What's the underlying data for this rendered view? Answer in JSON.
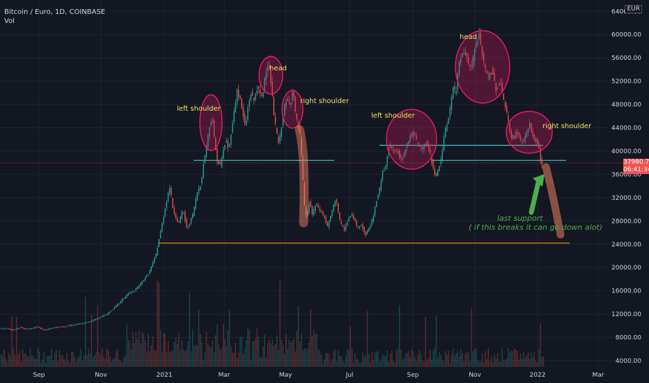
{
  "header": {
    "title": "Bitcoin / Euro, 1D, COINBASE",
    "indicator": "Vol",
    "currency": "EUR"
  },
  "last_price": {
    "value": "37980.73",
    "countdown": "06:41:34",
    "color": "#ef5350"
  },
  "chart_data": {
    "type": "candlestick",
    "y_ticks": [
      "4000.00",
      "8000.00",
      "12000.00",
      "16000.00",
      "20000.00",
      "24000.00",
      "28000.00",
      "32000.00",
      "36000.00",
      "40000.00",
      "44000.00",
      "48000.00",
      "52000.00",
      "56000.00",
      "60000.00",
      "64000.00"
    ],
    "x_ticks": [
      "Sep",
      "Nov",
      "2021",
      "Mar",
      "May",
      "Jul",
      "Sep",
      "Nov",
      "2022",
      "Mar"
    ],
    "price_path": [
      [
        0,
        9500
      ],
      [
        8,
        9600
      ],
      [
        20,
        9300
      ],
      [
        30,
        9700
      ],
      [
        40,
        9400
      ],
      [
        55,
        9800
      ],
      [
        65,
        9300
      ],
      [
        80,
        9700
      ],
      [
        95,
        9900
      ],
      [
        110,
        10200
      ],
      [
        125,
        10500
      ],
      [
        140,
        11200
      ],
      [
        155,
        12000
      ],
      [
        165,
        13000
      ],
      [
        175,
        14200
      ],
      [
        185,
        15500
      ],
      [
        195,
        16000
      ],
      [
        205,
        17500
      ],
      [
        215,
        19000
      ],
      [
        225,
        22000
      ],
      [
        235,
        28000
      ],
      [
        245,
        34000
      ],
      [
        250,
        30000
      ],
      [
        258,
        27500
      ],
      [
        264,
        30000
      ],
      [
        270,
        26500
      ],
      [
        278,
        29000
      ],
      [
        285,
        33000
      ],
      [
        290,
        34500
      ],
      [
        294,
        38000
      ],
      [
        298,
        41000
      ],
      [
        302,
        44000
      ],
      [
        306,
        46000
      ],
      [
        310,
        41000
      ],
      [
        314,
        38000
      ],
      [
        318,
        37500
      ],
      [
        322,
        40000
      ],
      [
        326,
        42000
      ],
      [
        330,
        40000
      ],
      [
        334,
        44000
      ],
      [
        338,
        47000
      ],
      [
        342,
        50500
      ],
      [
        346,
        49000
      ],
      [
        350,
        46500
      ],
      [
        354,
        44000
      ],
      [
        358,
        48000
      ],
      [
        362,
        50000
      ],
      [
        366,
        48500
      ],
      [
        370,
        51000
      ],
      [
        374,
        50000
      ],
      [
        378,
        49000
      ],
      [
        382,
        53000
      ],
      [
        386,
        55000
      ],
      [
        390,
        52500
      ],
      [
        394,
        47000
      ],
      [
        398,
        43500
      ],
      [
        402,
        41000
      ],
      [
        406,
        44500
      ],
      [
        410,
        47500
      ],
      [
        414,
        49000
      ],
      [
        418,
        48000
      ],
      [
        422,
        51000
      ],
      [
        426,
        46000
      ],
      [
        430,
        44000
      ],
      [
        433,
        42000
      ],
      [
        436,
        36000
      ],
      [
        439,
        30000
      ],
      [
        442,
        28500
      ],
      [
        446,
        31500
      ],
      [
        450,
        29000
      ],
      [
        455,
        31000
      ],
      [
        460,
        30000
      ],
      [
        466,
        29000
      ],
      [
        472,
        27000
      ],
      [
        478,
        29500
      ],
      [
        484,
        32000
      ],
      [
        490,
        27500
      ],
      [
        496,
        26500
      ],
      [
        502,
        28500
      ],
      [
        508,
        29000
      ],
      [
        514,
        27000
      ],
      [
        520,
        27500
      ],
      [
        526,
        25500
      ],
      [
        530,
        26500
      ],
      [
        534,
        27500
      ],
      [
        538,
        29000
      ],
      [
        542,
        31500
      ],
      [
        546,
        33000
      ],
      [
        550,
        36000
      ],
      [
        555,
        37500
      ],
      [
        560,
        41000
      ],
      [
        566,
        40000
      ],
      [
        572,
        40000
      ],
      [
        578,
        38500
      ],
      [
        584,
        40500
      ],
      [
        590,
        42500
      ],
      [
        596,
        43000
      ],
      [
        602,
        41000
      ],
      [
        608,
        40500
      ],
      [
        614,
        41500
      ],
      [
        620,
        39000
      ],
      [
        624,
        37000
      ],
      [
        628,
        35500
      ],
      [
        632,
        37500
      ],
      [
        636,
        39500
      ],
      [
        640,
        43000
      ],
      [
        644,
        45000
      ],
      [
        648,
        47500
      ],
      [
        652,
        51000
      ],
      [
        656,
        49500
      ],
      [
        660,
        55000
      ],
      [
        666,
        57500
      ],
      [
        672,
        56000
      ],
      [
        678,
        54000
      ],
      [
        684,
        58000
      ],
      [
        690,
        60000
      ],
      [
        696,
        55000
      ],
      [
        702,
        52500
      ],
      [
        708,
        54000
      ],
      [
        714,
        50500
      ],
      [
        720,
        52000
      ],
      [
        726,
        48000
      ],
      [
        730,
        46000
      ],
      [
        734,
        43000
      ],
      [
        738,
        42000
      ],
      [
        744,
        43500
      ],
      [
        750,
        41500
      ],
      [
        756,
        42500
      ],
      [
        762,
        44500
      ],
      [
        768,
        42000
      ],
      [
        774,
        41500
      ],
      [
        778,
        38000
      ]
    ],
    "levels": [
      {
        "name": "neckline-left",
        "y": 38400,
        "x1": 278,
        "x2": 480,
        "color": "#4fc3c7"
      },
      {
        "name": "neckline-right-upper",
        "y": 41000,
        "x1": 545,
        "x2": 780,
        "color": "#4fc3c7"
      },
      {
        "name": "neckline-right-lower",
        "y": 38400,
        "x1": 620,
        "x2": 813,
        "color": "#4fc3c7"
      },
      {
        "name": "support",
        "y": 24200,
        "x1": 227,
        "x2": 818,
        "color": "#ff9800"
      }
    ],
    "annotations": {
      "left_shoulder_1": "left shoulder",
      "head_1": "head",
      "right_shoulder_1": "right shoulder",
      "left_shoulder_2": "left shoulder",
      "head_2": "head",
      "right_shoulder_2": "right shoulder",
      "support_line1": "last support",
      "support_line2": "( if this breaks it can go down alot)"
    }
  }
}
